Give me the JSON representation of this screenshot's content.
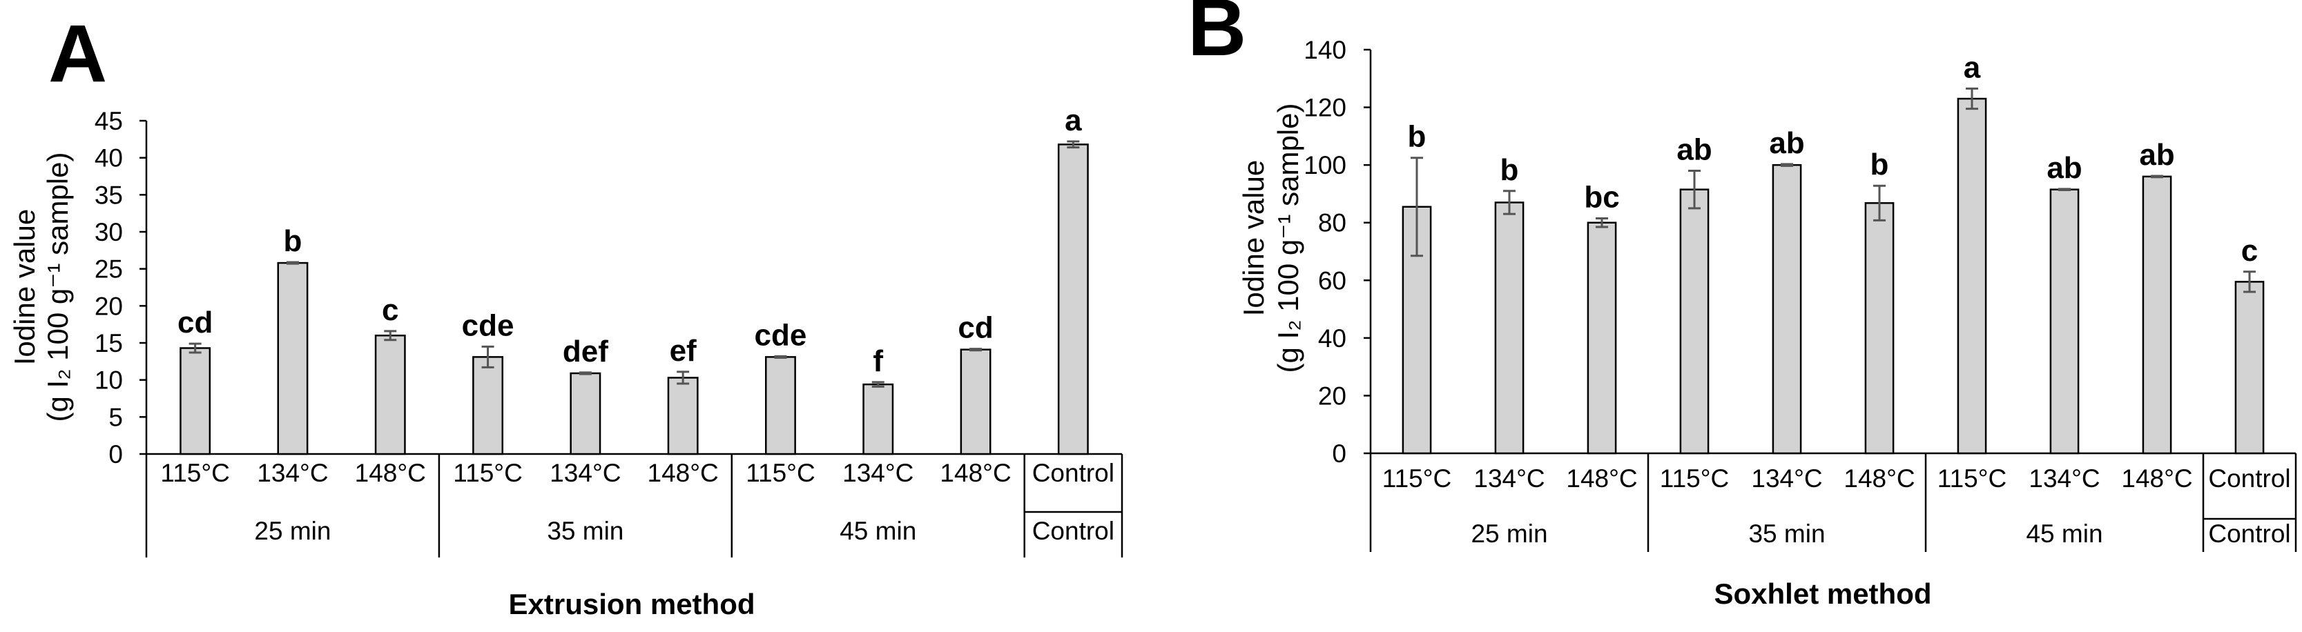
{
  "chart_data": [
    {
      "panel": "A",
      "type": "bar",
      "ylabel_line1": "Iodine value",
      "ylabel_line2": "(g I₂ 100 g⁻¹ sample)",
      "xlabel": "Extrusion method",
      "ylim": [
        0,
        45
      ],
      "yticks": [
        "0",
        "5",
        "10",
        "15",
        "20",
        "25",
        "30",
        "35",
        "40",
        "45"
      ],
      "categories": [
        "115°C",
        "134°C",
        "148°C",
        "115°C",
        "134°C",
        "148°C",
        "115°C",
        "134°C",
        "148°C",
        "Control"
      ],
      "groups": [
        {
          "label": "25 min",
          "count": 3
        },
        {
          "label": "35 min",
          "count": 3
        },
        {
          "label": "45 min",
          "count": 3
        },
        {
          "label": "Control",
          "count": 1
        }
      ],
      "values": [
        14.3,
        25.8,
        16.0,
        13.1,
        10.9,
        10.3,
        13.1,
        9.4,
        14.1,
        41.8
      ],
      "errors": [
        0.6,
        0.1,
        0.6,
        1.4,
        0.1,
        0.8,
        0.1,
        0.3,
        0.1,
        0.4
      ],
      "significance": [
        "cd",
        "b",
        "c",
        "cde",
        "def",
        "ef",
        "cde",
        "f",
        "cd",
        "a"
      ]
    },
    {
      "panel": "B",
      "type": "bar",
      "ylabel_line1": "Iodine value",
      "ylabel_line2": "(g I₂ 100 g⁻¹ sample)",
      "xlabel": "Soxhlet method",
      "ylim": [
        0,
        140
      ],
      "yticks": [
        "0",
        "20",
        "40",
        "60",
        "80",
        "100",
        "120",
        "140"
      ],
      "categories": [
        "115°C",
        "134°C",
        "148°C",
        "115°C",
        "134°C",
        "148°C",
        "115°C",
        "134°C",
        "148°C",
        "Control"
      ],
      "groups": [
        {
          "label": "25 min",
          "count": 3
        },
        {
          "label": "35 min",
          "count": 3
        },
        {
          "label": "45 min",
          "count": 3
        },
        {
          "label": "Control",
          "count": 1
        }
      ],
      "values": [
        85.5,
        87.0,
        80.0,
        91.5,
        100.0,
        86.8,
        123.0,
        91.5,
        96.0,
        59.5
      ],
      "errors": [
        17.0,
        4.0,
        1.5,
        6.5,
        0.3,
        6.0,
        3.5,
        0.2,
        0.2,
        3.5
      ],
      "significance": [
        "b",
        "b",
        "bc",
        "ab",
        "ab",
        "b",
        "a",
        "ab",
        "ab",
        "c"
      ]
    }
  ]
}
